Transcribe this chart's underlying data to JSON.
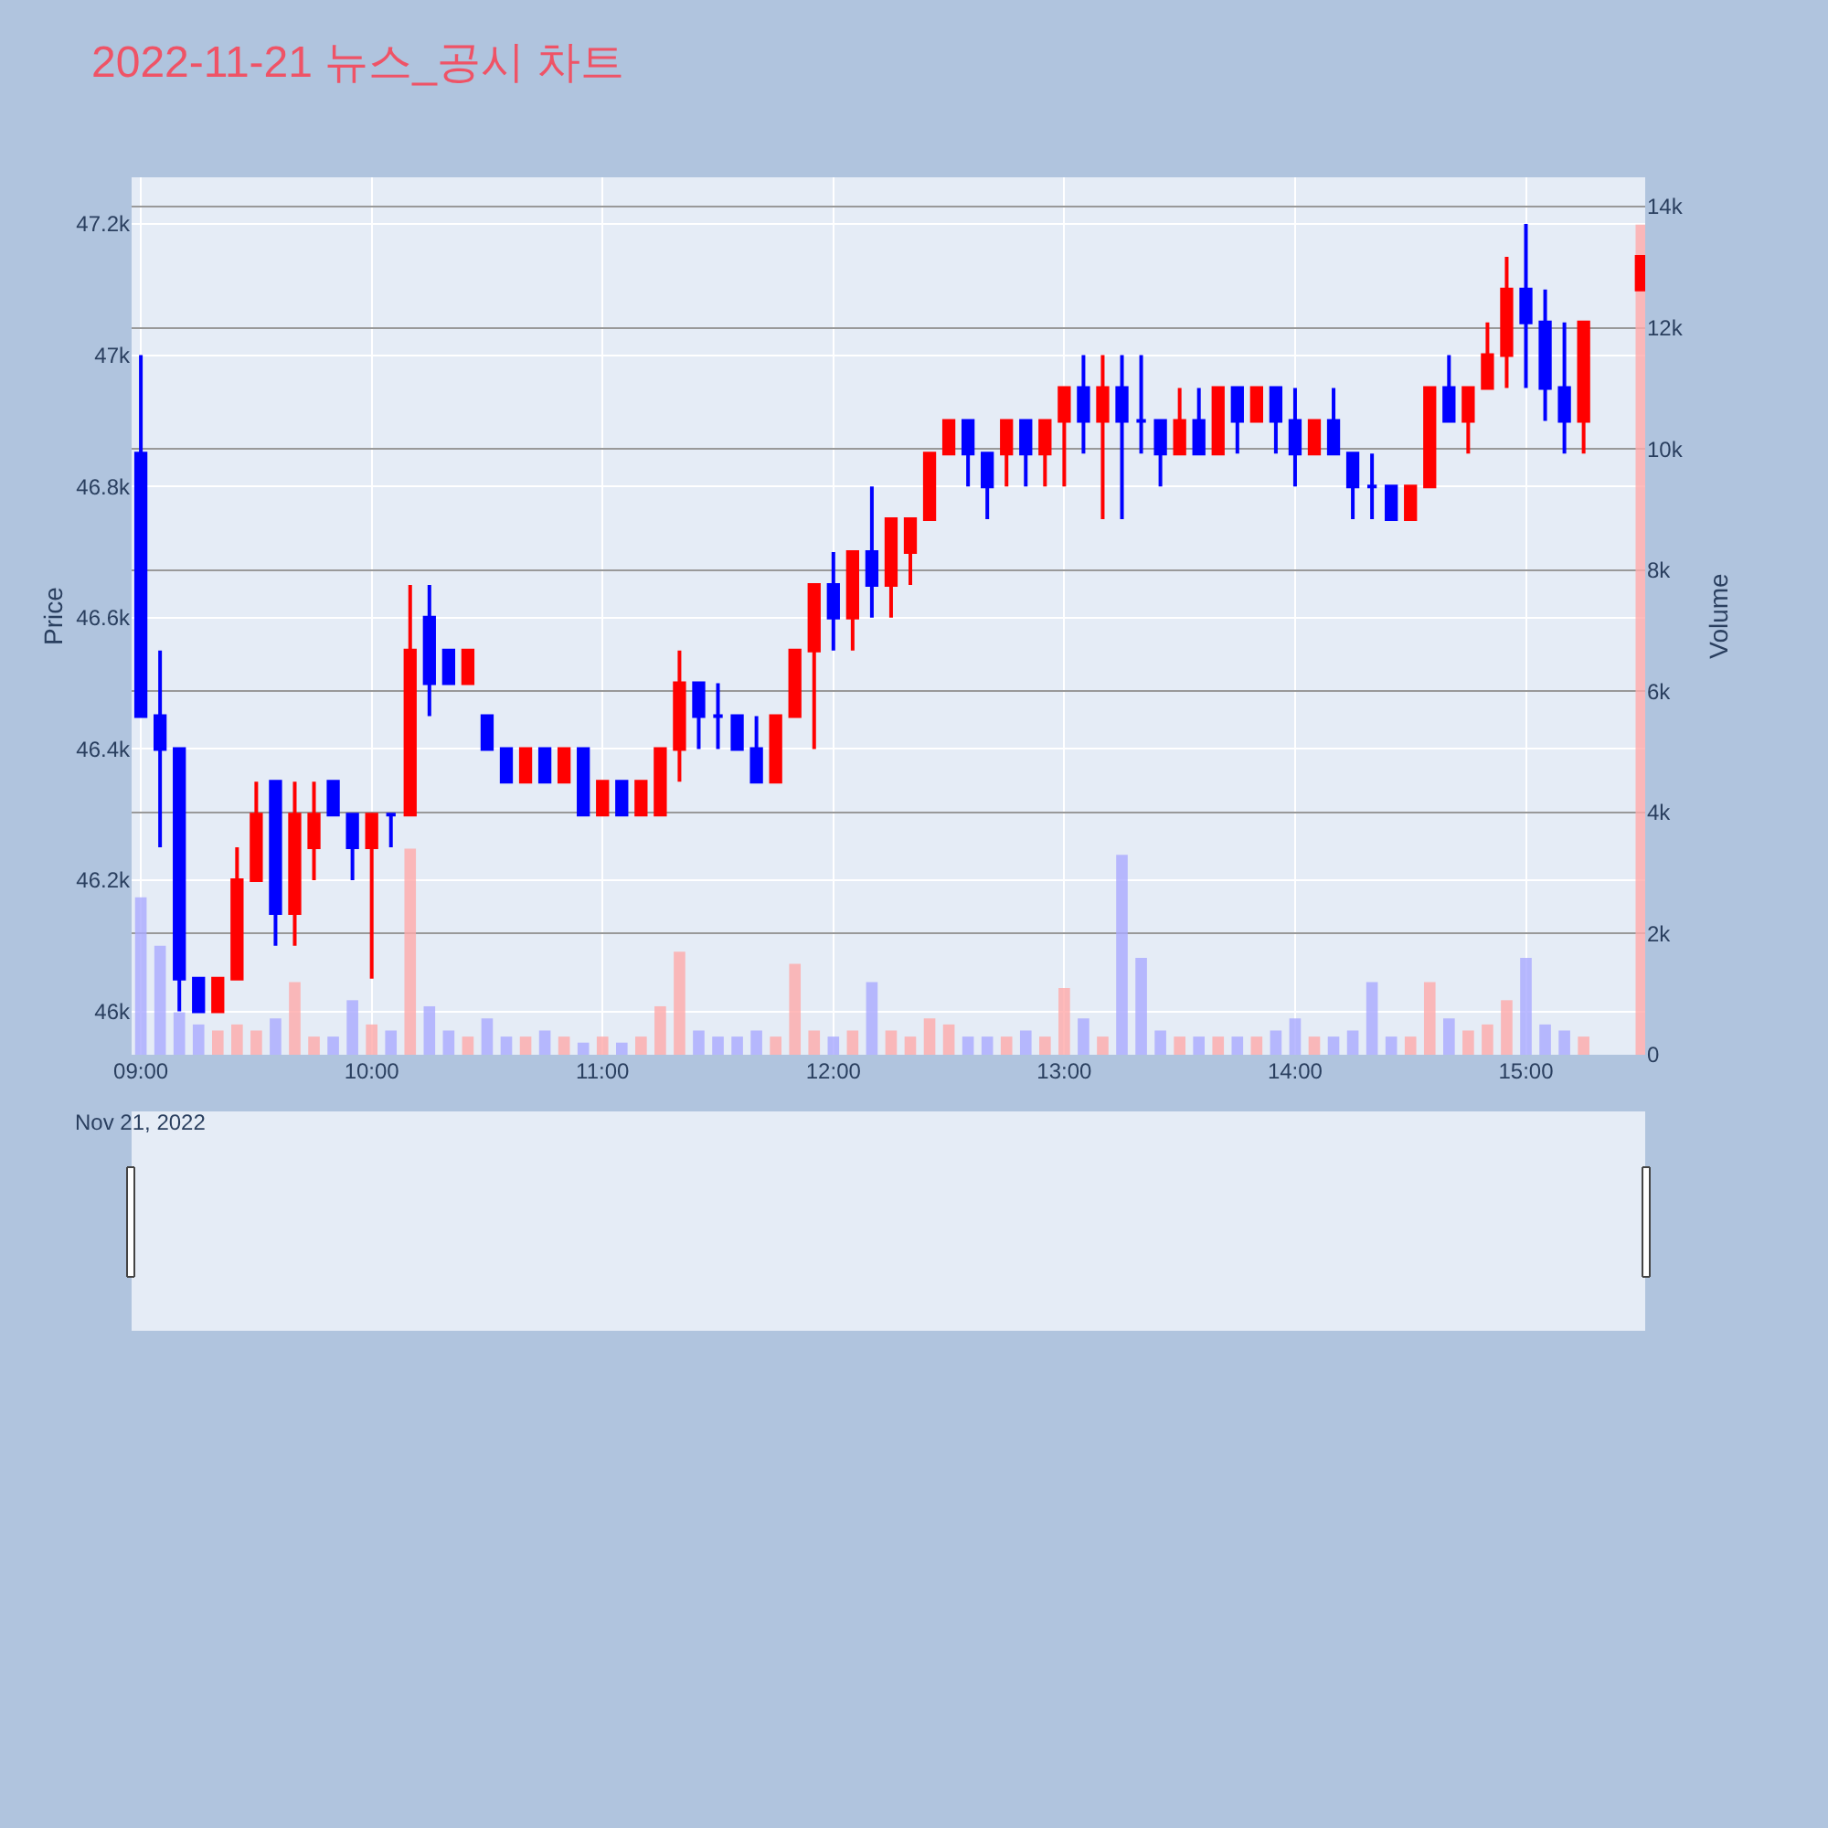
{
  "chart_data": {
    "type": "candlestick",
    "title": "2022-11-21 뉴스_공시 차트",
    "ylabel": "Price",
    "y2label": "Volume",
    "annotations": [
      "Nov 21, 2022"
    ],
    "x": [
      "2022-11-21T09:00",
      "2022-11-21T09:05",
      "2022-11-21T09:10",
      "2022-11-21T09:15",
      "2022-11-21T09:20",
      "2022-11-21T09:25",
      "2022-11-21T09:30",
      "2022-11-21T09:35",
      "2022-11-21T09:40",
      "2022-11-21T09:45",
      "2022-11-21T09:50",
      "2022-11-21T09:55",
      "2022-11-21T10:00",
      "2022-11-21T10:05",
      "2022-11-21T10:10",
      "2022-11-21T10:15",
      "2022-11-21T10:20",
      "2022-11-21T10:25",
      "2022-11-21T10:30",
      "2022-11-21T10:35",
      "2022-11-21T10:40",
      "2022-11-21T10:45",
      "2022-11-21T10:50",
      "2022-11-21T10:55",
      "2022-11-21T11:00",
      "2022-11-21T11:05",
      "2022-11-21T11:10",
      "2022-11-21T11:15",
      "2022-11-21T11:20",
      "2022-11-21T11:25",
      "2022-11-21T11:30",
      "2022-11-21T11:35",
      "2022-11-21T11:40",
      "2022-11-21T11:45",
      "2022-11-21T11:50",
      "2022-11-21T11:55",
      "2022-11-21T12:00",
      "2022-11-21T12:05",
      "2022-11-21T12:10",
      "2022-11-21T12:15",
      "2022-11-21T12:20",
      "2022-11-21T12:25",
      "2022-11-21T12:30",
      "2022-11-21T12:35",
      "2022-11-21T12:40",
      "2022-11-21T12:45",
      "2022-11-21T12:50",
      "2022-11-21T12:55",
      "2022-11-21T13:00",
      "2022-11-21T13:05",
      "2022-11-21T13:10",
      "2022-11-21T13:15",
      "2022-11-21T13:20",
      "2022-11-21T13:25",
      "2022-11-21T13:30",
      "2022-11-21T13:35",
      "2022-11-21T13:40",
      "2022-11-21T13:45",
      "2022-11-21T13:50",
      "2022-11-21T13:55",
      "2022-11-21T14:00",
      "2022-11-21T14:05",
      "2022-11-21T14:10",
      "2022-11-21T14:15",
      "2022-11-21T14:20",
      "2022-11-21T14:25",
      "2022-11-21T14:30",
      "2022-11-21T14:35",
      "2022-11-21T14:40",
      "2022-11-21T14:45",
      "2022-11-21T14:50",
      "2022-11-21T14:55",
      "2022-11-21T15:00",
      "2022-11-21T15:05",
      "2022-11-21T15:10",
      "2022-11-21T15:15",
      "2022-11-21T15:30"
    ],
    "ohlc": [
      [
        46850,
        47000,
        46450,
        46450
      ],
      [
        46450,
        46550,
        46250,
        46400
      ],
      [
        46400,
        46400,
        46000,
        46050
      ],
      [
        46050,
        46050,
        46000,
        46000
      ],
      [
        46000,
        46050,
        46000,
        46050
      ],
      [
        46050,
        46250,
        46050,
        46200
      ],
      [
        46200,
        46350,
        46200,
        46300
      ],
      [
        46350,
        46350,
        46100,
        46150
      ],
      [
        46150,
        46350,
        46100,
        46300
      ],
      [
        46250,
        46350,
        46200,
        46300
      ],
      [
        46350,
        46350,
        46300,
        46300
      ],
      [
        46300,
        46300,
        46200,
        46250
      ],
      [
        46250,
        46300,
        46050,
        46300
      ],
      [
        46300,
        46300,
        46250,
        46300
      ],
      [
        46300,
        46650,
        46300,
        46550
      ],
      [
        46600,
        46650,
        46450,
        46500
      ],
      [
        46550,
        46550,
        46500,
        46500
      ],
      [
        46500,
        46550,
        46500,
        46550
      ],
      [
        46450,
        46450,
        46400,
        46400
      ],
      [
        46400,
        46400,
        46350,
        46350
      ],
      [
        46350,
        46400,
        46350,
        46400
      ],
      [
        46400,
        46400,
        46350,
        46350
      ],
      [
        46350,
        46400,
        46350,
        46400
      ],
      [
        46400,
        46400,
        46300,
        46300
      ],
      [
        46300,
        46350,
        46300,
        46350
      ],
      [
        46350,
        46350,
        46300,
        46300
      ],
      [
        46300,
        46350,
        46300,
        46350
      ],
      [
        46300,
        46400,
        46300,
        46400
      ],
      [
        46400,
        46550,
        46350,
        46500
      ],
      [
        46500,
        46500,
        46400,
        46450
      ],
      [
        46450,
        46500,
        46400,
        46450
      ],
      [
        46450,
        46450,
        46400,
        46400
      ],
      [
        46400,
        46450,
        46350,
        46350
      ],
      [
        46350,
        46450,
        46350,
        46450
      ],
      [
        46450,
        46550,
        46450,
        46550
      ],
      [
        46550,
        46650,
        46400,
        46650
      ],
      [
        46650,
        46700,
        46550,
        46600
      ],
      [
        46600,
        46700,
        46550,
        46700
      ],
      [
        46700,
        46800,
        46600,
        46650
      ],
      [
        46650,
        46750,
        46600,
        46750
      ],
      [
        46700,
        46750,
        46650,
        46750
      ],
      [
        46750,
        46850,
        46750,
        46850
      ],
      [
        46850,
        46900,
        46850,
        46900
      ],
      [
        46900,
        46900,
        46800,
        46850
      ],
      [
        46850,
        46850,
        46750,
        46800
      ],
      [
        46850,
        46900,
        46800,
        46900
      ],
      [
        46900,
        46900,
        46800,
        46850
      ],
      [
        46850,
        46900,
        46800,
        46900
      ],
      [
        46900,
        46950,
        46800,
        46950
      ],
      [
        46950,
        47000,
        46850,
        46900
      ],
      [
        46900,
        47000,
        46750,
        46950
      ],
      [
        46950,
        47000,
        46750,
        46900
      ],
      [
        46900,
        47000,
        46850,
        46900
      ],
      [
        46900,
        46900,
        46800,
        46850
      ],
      [
        46850,
        46950,
        46850,
        46900
      ],
      [
        46900,
        46950,
        46850,
        46850
      ],
      [
        46850,
        46950,
        46850,
        46950
      ],
      [
        46950,
        46950,
        46850,
        46900
      ],
      [
        46900,
        46950,
        46900,
        46950
      ],
      [
        46950,
        46950,
        46850,
        46900
      ],
      [
        46900,
        46950,
        46800,
        46850
      ],
      [
        46850,
        46900,
        46850,
        46900
      ],
      [
        46900,
        46950,
        46850,
        46850
      ],
      [
        46850,
        46850,
        46750,
        46800
      ],
      [
        46800,
        46850,
        46750,
        46800
      ],
      [
        46800,
        46800,
        46750,
        46750
      ],
      [
        46750,
        46800,
        46750,
        46800
      ],
      [
        46800,
        46950,
        46800,
        46950
      ],
      [
        46950,
        47000,
        46900,
        46900
      ],
      [
        46900,
        46950,
        46850,
        46950
      ],
      [
        46950,
        47050,
        46950,
        47000
      ],
      [
        47000,
        47150,
        46950,
        47100
      ],
      [
        47100,
        47200,
        46950,
        47050
      ],
      [
        47050,
        47100,
        46900,
        46950
      ],
      [
        46950,
        47050,
        46850,
        46900
      ],
      [
        46900,
        47050,
        46850,
        47050
      ],
      [
        47100,
        47150,
        47100,
        47150
      ]
    ],
    "colors": [
      "#0000ff",
      "#0000ff",
      "#0000ff",
      "#0000ff",
      "#ff0000",
      "#ff0000",
      "#ff0000",
      "#0000ff",
      "#ff0000",
      "#ff0000",
      "#0000ff",
      "#0000ff",
      "#ff0000",
      "#0000ff",
      "#ff0000",
      "#0000ff",
      "#0000ff",
      "#ff0000",
      "#0000ff",
      "#0000ff",
      "#ff0000",
      "#0000ff",
      "#ff0000",
      "#0000ff",
      "#ff0000",
      "#0000ff",
      "#ff0000",
      "#ff0000",
      "#ff0000",
      "#0000ff",
      "#0000ff",
      "#0000ff",
      "#0000ff",
      "#ff0000",
      "#ff0000",
      "#ff0000",
      "#0000ff",
      "#ff0000",
      "#0000ff",
      "#ff0000",
      "#ff0000",
      "#ff0000",
      "#ff0000",
      "#0000ff",
      "#0000ff",
      "#ff0000",
      "#0000ff",
      "#ff0000",
      "#ff0000",
      "#0000ff",
      "#ff0000",
      "#0000ff",
      "#0000ff",
      "#0000ff",
      "#ff0000",
      "#0000ff",
      "#ff0000",
      "#0000ff",
      "#ff0000",
      "#0000ff",
      "#0000ff",
      "#ff0000",
      "#0000ff",
      "#0000ff",
      "#0000ff",
      "#0000ff",
      "#ff0000",
      "#ff0000",
      "#0000ff",
      "#ff0000",
      "#ff0000",
      "#ff0000",
      "#0000ff",
      "#0000ff",
      "#0000ff",
      "#ff0000",
      "#ff0000"
    ],
    "series": [
      {
        "type": "bar",
        "axis": "y2",
        "values": [
          2600,
          1800,
          700,
          500,
          400,
          500,
          400,
          600,
          1200,
          300,
          300,
          900,
          500,
          400,
          3400,
          800,
          400,
          300,
          600,
          300,
          300,
          400,
          300,
          200,
          300,
          200,
          300,
          800,
          1700,
          400,
          300,
          300,
          400,
          300,
          1500,
          400,
          300,
          400,
          1200,
          400,
          300,
          600,
          500,
          300,
          300,
          300,
          400,
          300,
          1100,
          600,
          300,
          3300,
          1600,
          400,
          300,
          300,
          300,
          300,
          300,
          400,
          600,
          300,
          300,
          400,
          1200,
          300,
          300,
          1200,
          600,
          400,
          500,
          900,
          1600,
          500,
          400,
          300,
          13700
        ],
        "colors": [
          "#aaaaff",
          "#aaaaff",
          "#aaaaff",
          "#aaaaff",
          "#ffaaaa",
          "#ffaaaa",
          "#ffaaaa",
          "#aaaaff",
          "#ffaaaa",
          "#ffaaaa",
          "#aaaaff",
          "#aaaaff",
          "#ffaaaa",
          "#aaaaff",
          "#ffaaaa",
          "#aaaaff",
          "#aaaaff",
          "#ffaaaa",
          "#aaaaff",
          "#aaaaff",
          "#ffaaaa",
          "#aaaaff",
          "#ffaaaa",
          "#aaaaff",
          "#ffaaaa",
          "#aaaaff",
          "#ffaaaa",
          "#ffaaaa",
          "#ffaaaa",
          "#aaaaff",
          "#aaaaff",
          "#aaaaff",
          "#aaaaff",
          "#ffaaaa",
          "#ffaaaa",
          "#ffaaaa",
          "#aaaaff",
          "#ffaaaa",
          "#aaaaff",
          "#ffaaaa",
          "#ffaaaa",
          "#ffaaaa",
          "#ffaaaa",
          "#aaaaff",
          "#aaaaff",
          "#ffaaaa",
          "#aaaaff",
          "#ffaaaa",
          "#ffaaaa",
          "#aaaaff",
          "#ffaaaa",
          "#aaaaff",
          "#aaaaff",
          "#aaaaff",
          "#ffaaaa",
          "#aaaaff",
          "#ffaaaa",
          "#aaaaff",
          "#ffaaaa",
          "#aaaaff",
          "#aaaaff",
          "#ffaaaa",
          "#aaaaff",
          "#aaaaff",
          "#aaaaff",
          "#aaaaff",
          "#ffaaaa",
          "#ffaaaa",
          "#aaaaff",
          "#ffaaaa",
          "#ffaaaa",
          "#ffaaaa",
          "#aaaaff",
          "#aaaaff",
          "#aaaaff",
          "#ffaaaa",
          "#ffaaaa"
        ]
      }
    ],
    "xlim": [
      "2022-11-21T08:57:36",
      "2022-11-21T15:31:00"
    ],
    "xticks": [
      {
        "value": "2022-11-21T09:00",
        "label": "09:00"
      },
      {
        "value": "2022-11-21T10:00",
        "label": "10:00"
      },
      {
        "value": "2022-11-21T11:00",
        "label": "11:00"
      },
      {
        "value": "2022-11-21T12:00",
        "label": "12:00"
      },
      {
        "value": "2022-11-21T13:00",
        "label": "13:00"
      },
      {
        "value": "2022-11-21T14:00",
        "label": "14:00"
      },
      {
        "value": "2022-11-21T15:00",
        "label": "15:00"
      }
    ],
    "ylim": [
      45934,
      47271
    ],
    "yticks": [
      {
        "value": 46000,
        "label": "46k"
      },
      {
        "value": 46200,
        "label": "46.2k"
      },
      {
        "value": 46400,
        "label": "46.4k"
      },
      {
        "value": 46600,
        "label": "46.6k"
      },
      {
        "value": 46800,
        "label": "46.8k"
      },
      {
        "value": 47000,
        "label": "47k"
      },
      {
        "value": 47200,
        "label": "47.2k"
      }
    ],
    "y2lim": [
      0,
      14482
    ],
    "y2ticks": [
      0,
      {
        "value": 2000,
        "label": "2k"
      },
      {
        "value": 4000,
        "label": "4k"
      },
      {
        "value": 6000,
        "label": "6k"
      },
      {
        "value": 8000,
        "label": "8k"
      },
      {
        "value": 10000,
        "label": "10k"
      },
      {
        "value": 12000,
        "label": "12k"
      },
      {
        "value": 14000,
        "label": "14k"
      }
    ],
    "grid": true
  }
}
